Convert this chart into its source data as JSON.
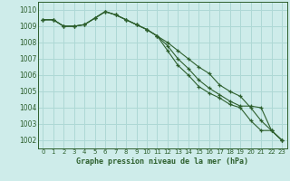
{
  "xlabel": "Graphe pression niveau de la mer (hPa)",
  "background_color": "#ceecea",
  "grid_color": "#aed8d5",
  "line_color": "#2d5f2d",
  "hours": [
    0,
    1,
    2,
    3,
    4,
    5,
    6,
    7,
    8,
    9,
    10,
    11,
    12,
    13,
    14,
    15,
    16,
    17,
    18,
    19,
    20,
    21,
    22,
    23
  ],
  "line1": [
    1009.4,
    1009.4,
    1009.0,
    1009.0,
    1009.1,
    1009.5,
    1009.9,
    1009.7,
    1009.4,
    1009.1,
    1008.8,
    1008.4,
    1008.0,
    1007.5,
    1007.0,
    1006.5,
    1006.1,
    1005.4,
    1005.0,
    1004.7,
    1004.0,
    1003.2,
    1002.6,
    1002.0
  ],
  "line2": [
    1009.4,
    1009.4,
    1009.0,
    1009.0,
    1009.1,
    1009.5,
    1009.9,
    1009.7,
    1009.4,
    1009.1,
    1008.8,
    1008.4,
    1007.8,
    1007.0,
    1006.4,
    1005.7,
    1005.2,
    1004.8,
    1004.4,
    1004.1,
    1004.1,
    1004.0,
    1002.6,
    1002.0
  ],
  "line3": [
    1009.4,
    1009.4,
    1009.0,
    1009.0,
    1009.1,
    1009.5,
    1009.9,
    1009.7,
    1009.4,
    1009.1,
    1008.8,
    1008.4,
    1007.5,
    1006.6,
    1006.0,
    1005.3,
    1004.9,
    1004.6,
    1004.2,
    1004.0,
    1003.2,
    1002.6,
    1002.6,
    1002.0
  ],
  "ylim_min": 1001.5,
  "ylim_max": 1010.5,
  "yticks": [
    1002,
    1003,
    1004,
    1005,
    1006,
    1007,
    1008,
    1009,
    1010
  ],
  "ytick_fontsize": 5.5,
  "xtick_fontsize": 5.0,
  "xlabel_fontsize": 6.0
}
